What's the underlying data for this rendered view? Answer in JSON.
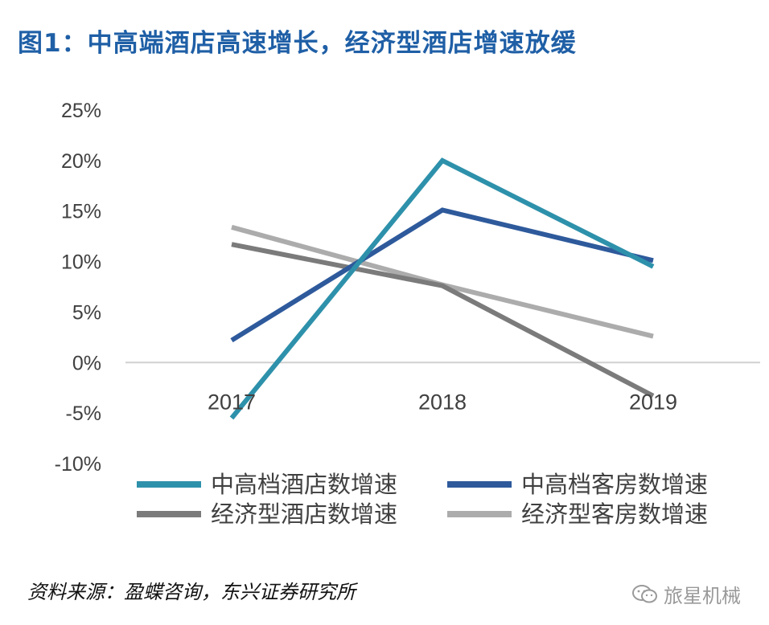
{
  "title": "图1：中高端酒店高速增长，经济型酒店增速放缓",
  "source": "资料来源：盈蝶咨询，东兴证券研究所",
  "watermark": {
    "text": "旅星机械",
    "icon": "wechat-icon"
  },
  "chart_data": {
    "type": "line",
    "title": "图1：中高端酒店高速增长，经济型酒店增速放缓",
    "xlabel": "",
    "ylabel": "",
    "categories": [
      "2017",
      "2018",
      "2019"
    ],
    "ylim": [
      -10,
      25
    ],
    "yticks": [
      25,
      20,
      15,
      10,
      5,
      0,
      -5,
      -10
    ],
    "ytick_labels": [
      "25%",
      "20%",
      "15%",
      "10%",
      "5%",
      "0%",
      "-5%",
      "-10%"
    ],
    "grid": false,
    "legend_position": "bottom",
    "series": [
      {
        "name": "中高档酒店数增速",
        "values": [
          -5.5,
          20.0,
          9.5
        ],
        "color": "#2e91ab"
      },
      {
        "name": "中高档客房数增速",
        "values": [
          2.2,
          15.1,
          10.1
        ],
        "color": "#2e5a9c"
      },
      {
        "name": "经济型酒店数增速",
        "values": [
          11.7,
          7.6,
          -3.3
        ],
        "color": "#7b7b7b"
      },
      {
        "name": "经济型客房数增速",
        "values": [
          13.4,
          7.7,
          2.6
        ],
        "color": "#acacac"
      }
    ]
  }
}
